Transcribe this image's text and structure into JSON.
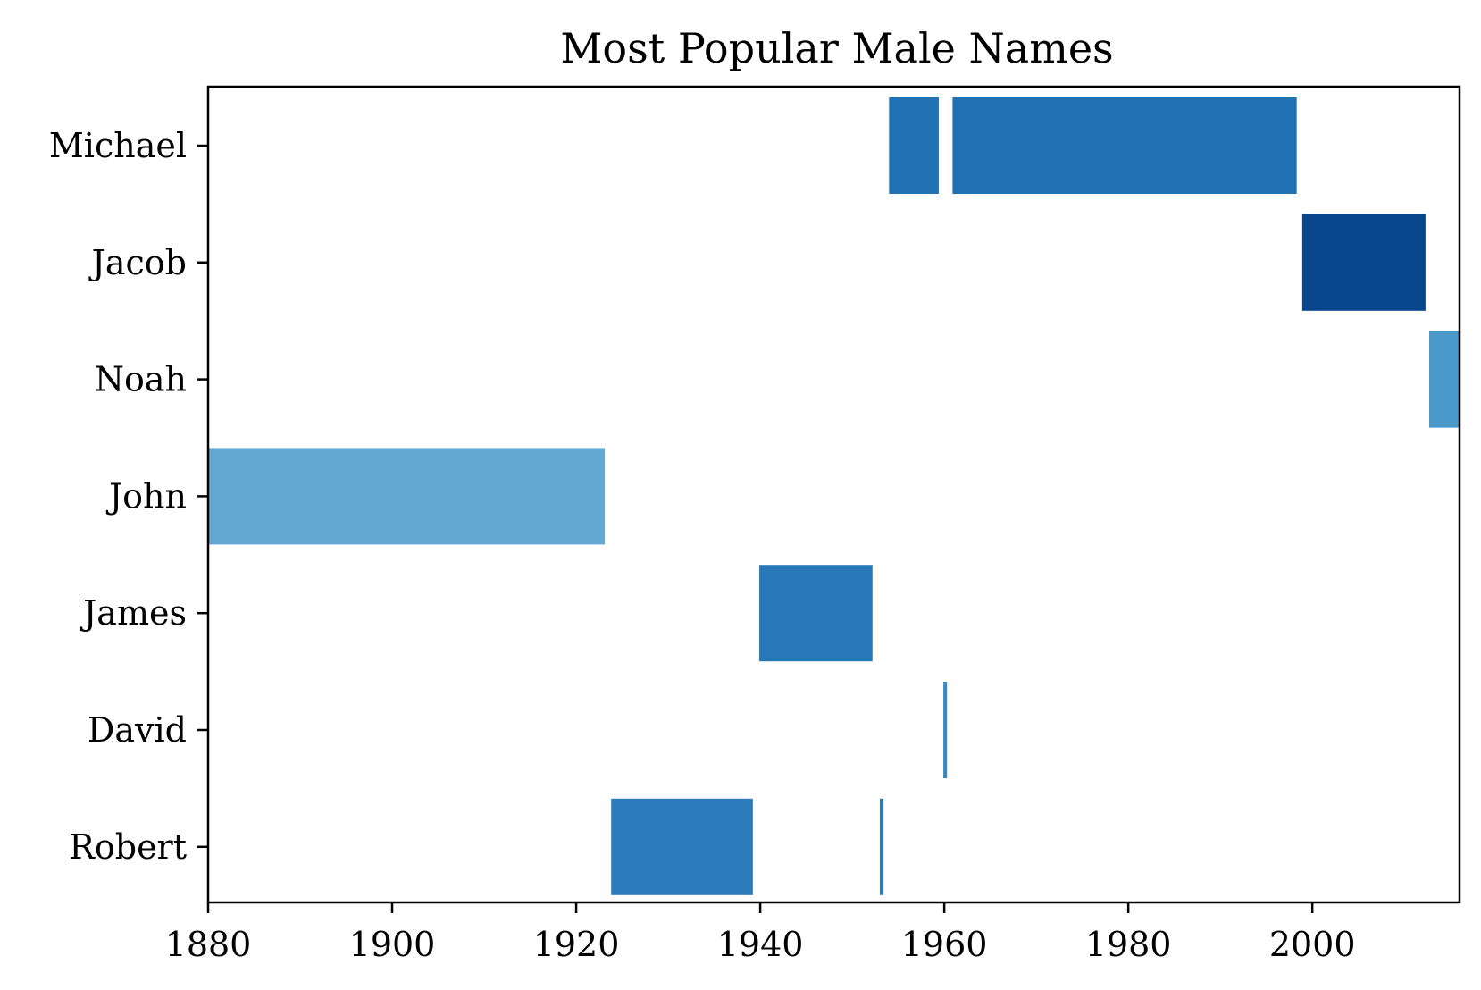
{
  "chart_data": {
    "type": "bar",
    "orientation": "horizontal-ranges",
    "title": "Most Popular Male Names",
    "xlabel": "",
    "ylabel": "",
    "xlim": [
      1880,
      2016
    ],
    "x_ticks": [
      1880,
      1900,
      1920,
      1940,
      1960,
      1980,
      2000
    ],
    "categories": [
      "Michael",
      "Jacob",
      "Noah",
      "John",
      "James",
      "David",
      "Robert"
    ],
    "grid": false,
    "legend": "none",
    "series": [
      {
        "category": "Michael",
        "color": "#2171b5",
        "ranges": [
          [
            1954,
            1959.4
          ],
          [
            1960.9,
            1998.3
          ]
        ]
      },
      {
        "category": "Jacob",
        "color": "#08458a",
        "ranges": [
          [
            1998.9,
            2012.3
          ]
        ]
      },
      {
        "category": "Noah",
        "color": "#4a97ca",
        "ranges": [
          [
            2012.7,
            2016
          ]
        ]
      },
      {
        "category": "John",
        "color": "#63a8d3",
        "ranges": [
          [
            1880,
            1923.1
          ]
        ]
      },
      {
        "category": "James",
        "color": "#2878b8",
        "ranges": [
          [
            1939.9,
            1952.2
          ]
        ]
      },
      {
        "category": "David",
        "color": "#3a88c2",
        "ranges": [
          [
            1959.9,
            1960.3
          ]
        ]
      },
      {
        "category": "Robert",
        "color": "#2c7bba",
        "ranges": [
          [
            1923.8,
            1939.2
          ],
          [
            1953.0,
            1953.4
          ]
        ]
      }
    ]
  }
}
